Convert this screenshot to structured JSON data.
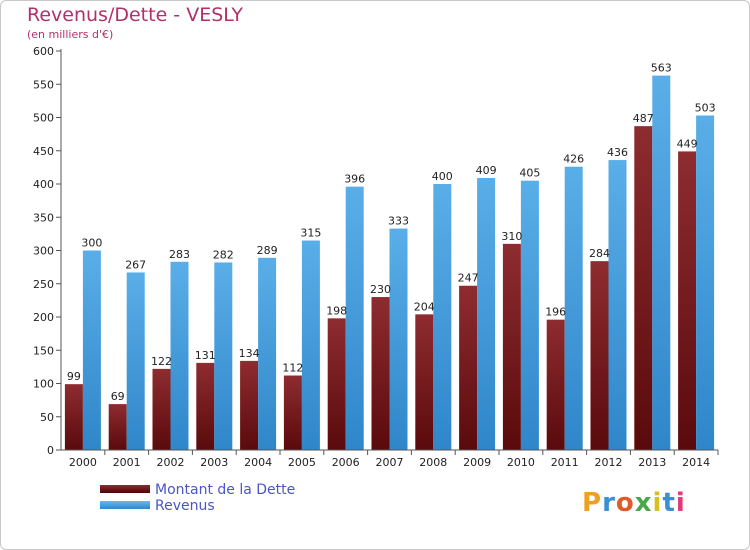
{
  "title": "Revenus/Dette - VESLY",
  "subtitle": "(en milliers d'€)",
  "legend": {
    "debt_label": "Montant de la Dette",
    "revenue_label": "Revenus"
  },
  "logo": {
    "text": "Proxiti"
  },
  "colors": {
    "debt": "#7a1b1e",
    "revenue": "#3d9ee2",
    "title": "#b0306a",
    "legend_text": "#4a55c8"
  },
  "chart_data": {
    "type": "bar",
    "title": "Revenus/Dette - VESLY",
    "ylabel": "(en milliers d'€)",
    "xlabel": "",
    "ylim": [
      0,
      600
    ],
    "ytick_step": 50,
    "grid": false,
    "legend_position": "bottom-left",
    "categories": [
      "2000",
      "2001",
      "2002",
      "2003",
      "2004",
      "2005",
      "2006",
      "2007",
      "2008",
      "2009",
      "2010",
      "2011",
      "2012",
      "2013",
      "2014"
    ],
    "series": [
      {
        "name": "Montant de la Dette",
        "values": [
          99,
          69,
          122,
          131,
          134,
          112,
          198,
          230,
          204,
          247,
          310,
          196,
          284,
          487,
          449
        ]
      },
      {
        "name": "Revenus",
        "values": [
          300,
          267,
          283,
          282,
          289,
          315,
          396,
          333,
          400,
          409,
          405,
          426,
          436,
          563,
          503
        ]
      }
    ]
  }
}
